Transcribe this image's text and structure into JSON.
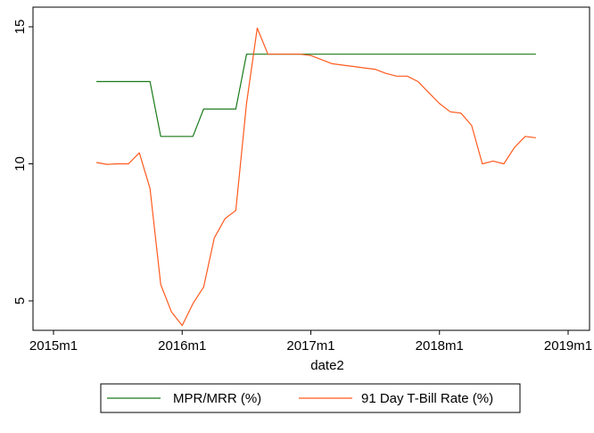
{
  "chart_data": {
    "type": "line",
    "title": "",
    "xlabel": "date2",
    "ylabel": "",
    "x_ticks": [
      "2015m1",
      "2016m1",
      "2017m1",
      "2018m1",
      "2019m1"
    ],
    "y_ticks": [
      "5",
      "10",
      "15"
    ],
    "xlim": [
      "2015-01",
      "2019-01"
    ],
    "ylim": [
      3.9,
      15.5
    ],
    "grid": false,
    "legend_position": "bottom",
    "series": [
      {
        "name": "MPR/MRR (%)",
        "color": "#1a7a1a",
        "points": [
          [
            "2015-05",
            13.0
          ],
          [
            "2015-06",
            13.0
          ],
          [
            "2015-07",
            13.0
          ],
          [
            "2015-08",
            13.0
          ],
          [
            "2015-09",
            13.0
          ],
          [
            "2015-10",
            13.0
          ],
          [
            "2015-11",
            11.0
          ],
          [
            "2015-12",
            11.0
          ],
          [
            "2016-01",
            11.0
          ],
          [
            "2016-02",
            11.0
          ],
          [
            "2016-03",
            12.0
          ],
          [
            "2016-04",
            12.0
          ],
          [
            "2016-05",
            12.0
          ],
          [
            "2016-06",
            12.0
          ],
          [
            "2016-07",
            14.0
          ],
          [
            "2016-08",
            14.0
          ],
          [
            "2016-09",
            14.0
          ],
          [
            "2016-10",
            14.0
          ],
          [
            "2016-11",
            14.0
          ],
          [
            "2016-12",
            14.0
          ],
          [
            "2017-01",
            14.0
          ],
          [
            "2017-02",
            14.0
          ],
          [
            "2017-03",
            14.0
          ],
          [
            "2017-04",
            14.0
          ],
          [
            "2017-05",
            14.0
          ],
          [
            "2017-06",
            14.0
          ],
          [
            "2017-07",
            14.0
          ],
          [
            "2017-08",
            14.0
          ],
          [
            "2017-09",
            14.0
          ],
          [
            "2017-10",
            14.0
          ],
          [
            "2017-11",
            14.0
          ],
          [
            "2017-12",
            14.0
          ],
          [
            "2018-01",
            14.0
          ],
          [
            "2018-02",
            14.0
          ],
          [
            "2018-03",
            14.0
          ],
          [
            "2018-04",
            14.0
          ],
          [
            "2018-05",
            14.0
          ],
          [
            "2018-06",
            14.0
          ],
          [
            "2018-07",
            14.0
          ],
          [
            "2018-08",
            14.0
          ],
          [
            "2018-09",
            14.0
          ],
          [
            "2018-10",
            14.0
          ]
        ]
      },
      {
        "name": "91 Day T-Bill Rate (%)",
        "color": "#ff5a1e",
        "points": [
          [
            "2015-05",
            10.05
          ],
          [
            "2015-06",
            9.98
          ],
          [
            "2015-07",
            10.0
          ],
          [
            "2015-08",
            10.0
          ],
          [
            "2015-09",
            10.4
          ],
          [
            "2015-10",
            9.1
          ],
          [
            "2015-11",
            5.6
          ],
          [
            "2015-12",
            4.6
          ],
          [
            "2016-01",
            4.1
          ],
          [
            "2016-02",
            4.9
          ],
          [
            "2016-03",
            5.5
          ],
          [
            "2016-04",
            7.3
          ],
          [
            "2016-05",
            8.0
          ],
          [
            "2016-06",
            8.3
          ],
          [
            "2016-07",
            12.2
          ],
          [
            "2016-08",
            14.95
          ],
          [
            "2016-09",
            14.0
          ],
          [
            "2016-10",
            14.0
          ],
          [
            "2016-11",
            14.0
          ],
          [
            "2016-12",
            14.0
          ],
          [
            "2017-01",
            13.95
          ],
          [
            "2017-02",
            13.8
          ],
          [
            "2017-03",
            13.65
          ],
          [
            "2017-04",
            13.6
          ],
          [
            "2017-05",
            13.55
          ],
          [
            "2017-06",
            13.5
          ],
          [
            "2017-07",
            13.45
          ],
          [
            "2017-08",
            13.3
          ],
          [
            "2017-09",
            13.2
          ],
          [
            "2017-10",
            13.2
          ],
          [
            "2017-11",
            13.0
          ],
          [
            "2017-12",
            12.6
          ],
          [
            "2018-01",
            12.2
          ],
          [
            "2018-02",
            11.9
          ],
          [
            "2018-03",
            11.85
          ],
          [
            "2018-04",
            11.4
          ],
          [
            "2018-05",
            10.0
          ],
          [
            "2018-06",
            10.1
          ],
          [
            "2018-07",
            10.0
          ],
          [
            "2018-08",
            10.6
          ],
          [
            "2018-09",
            11.0
          ],
          [
            "2018-10",
            10.95
          ]
        ]
      }
    ]
  }
}
